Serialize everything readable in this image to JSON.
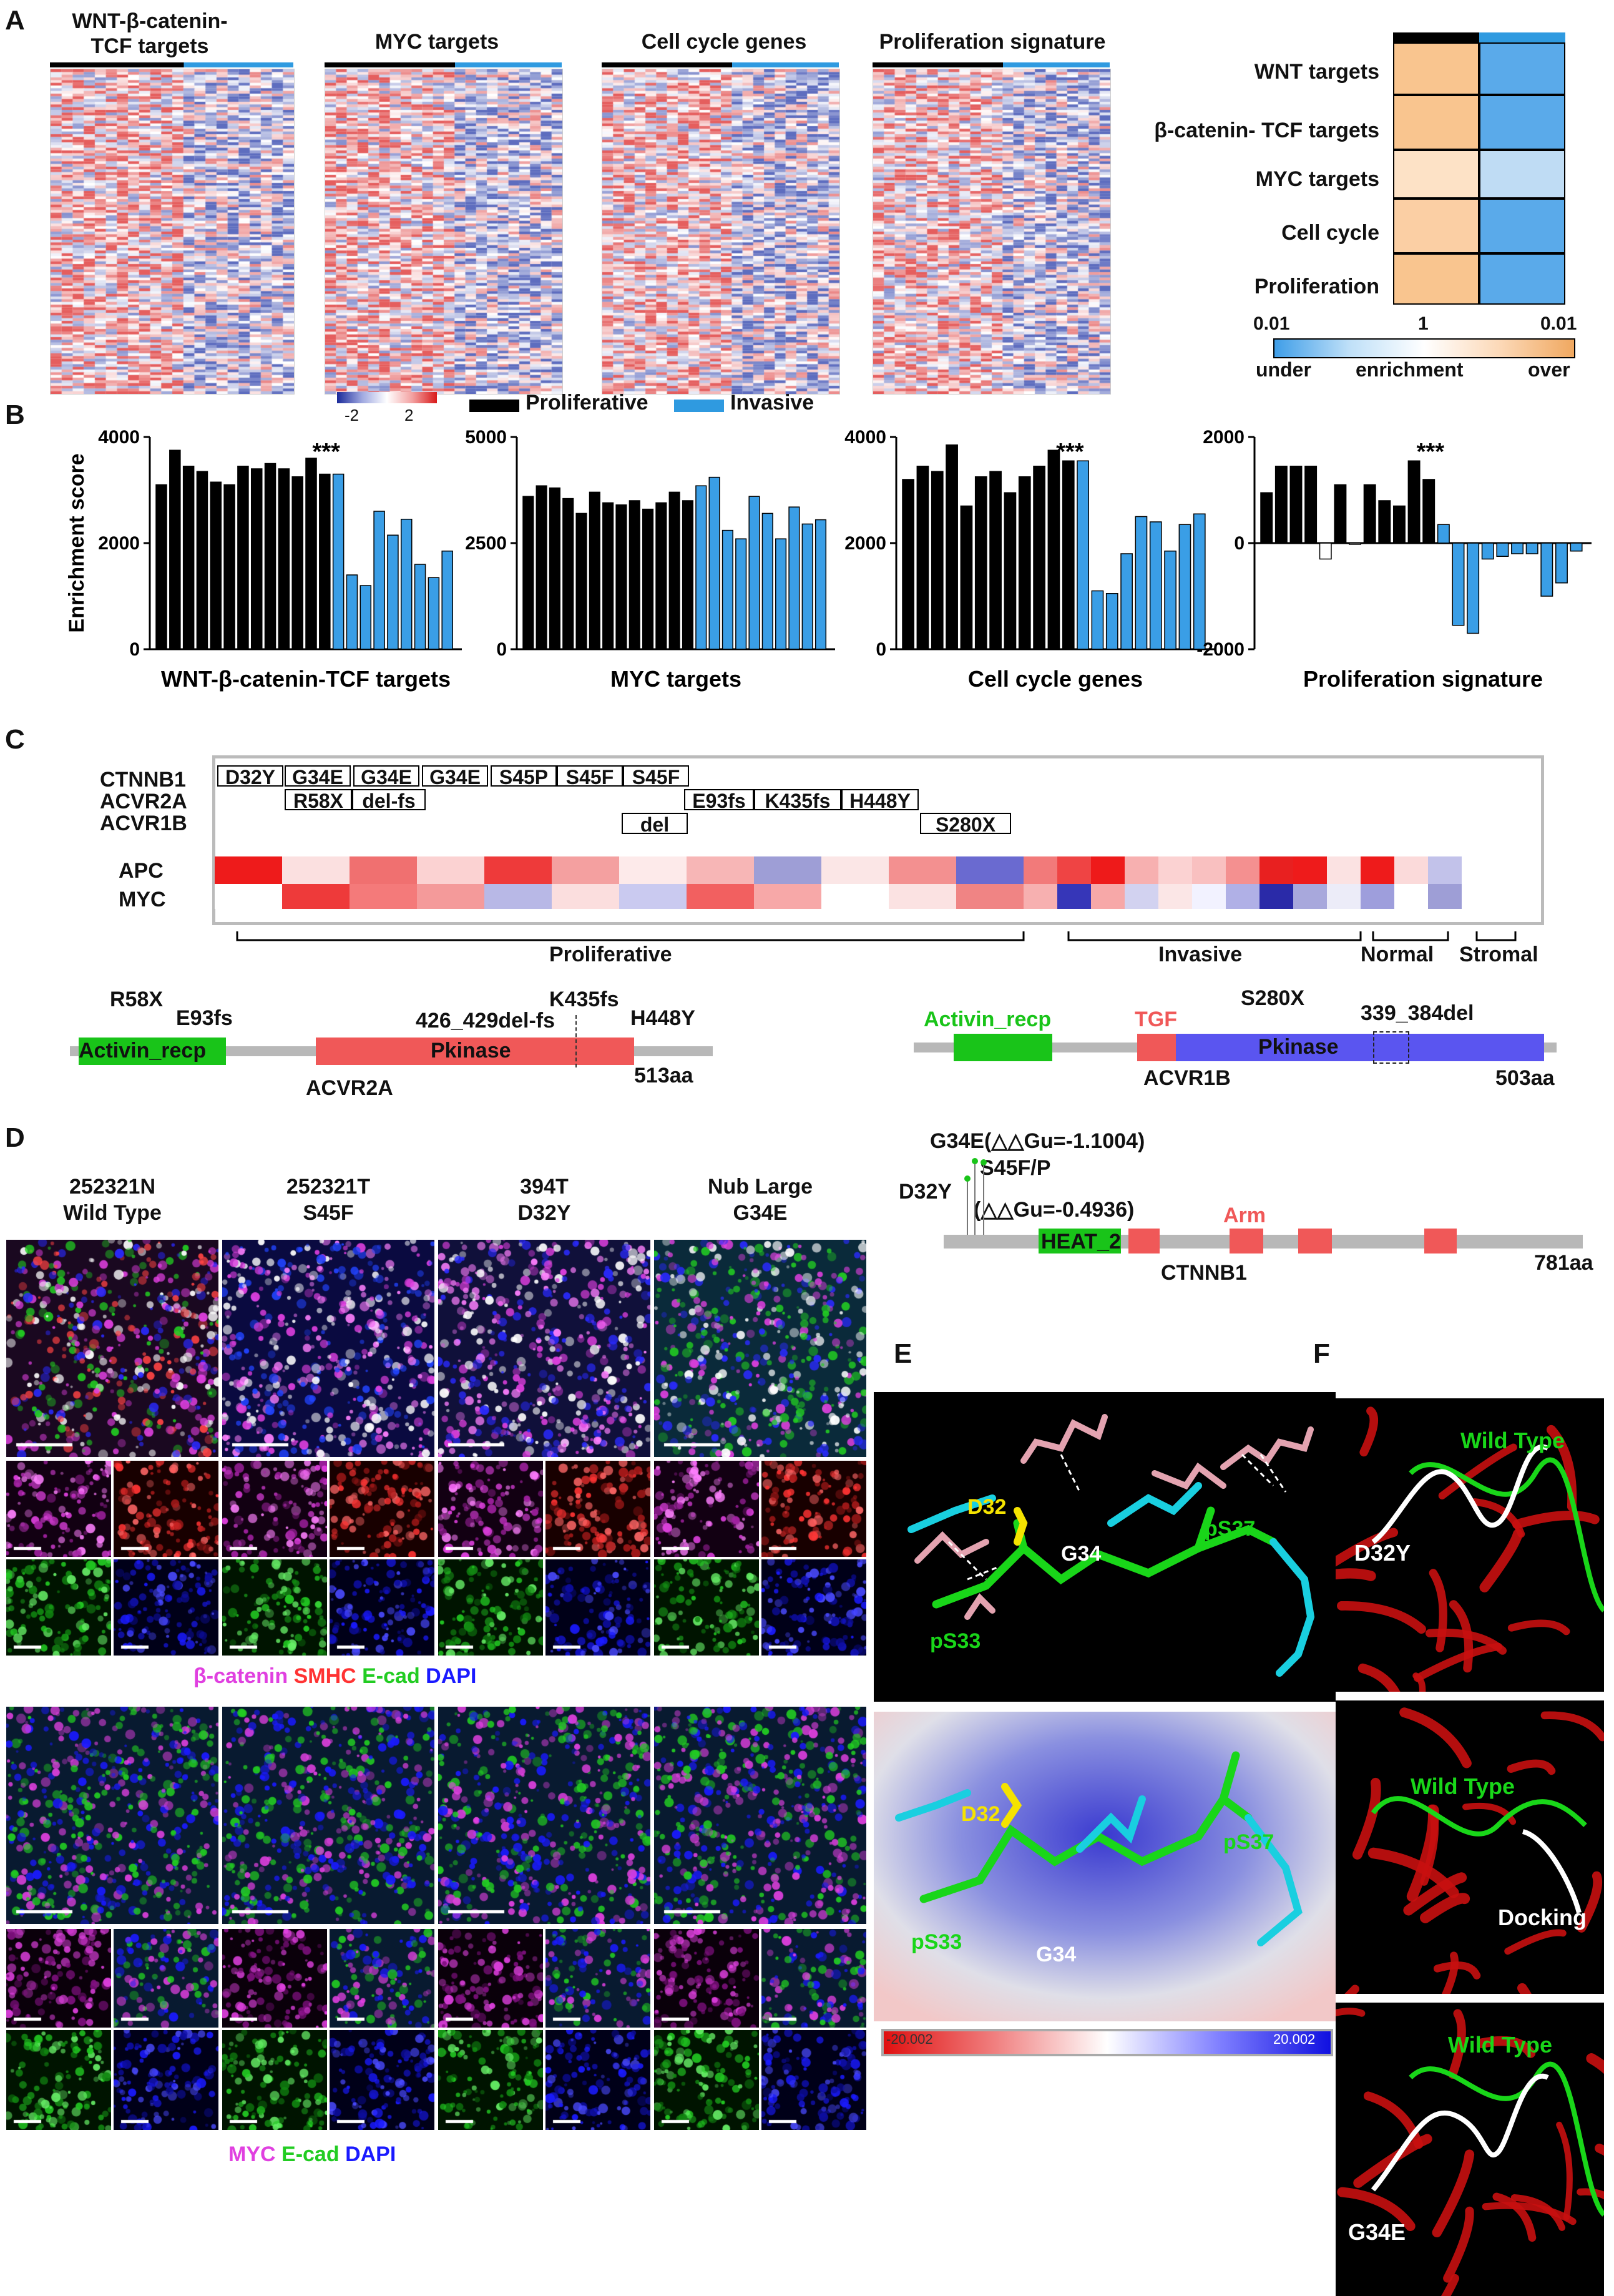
{
  "panel_labels": {
    "A": "A",
    "B": "B",
    "C": "C",
    "D": "D",
    "E": "E",
    "F": "F"
  },
  "panelA": {
    "heatmaps": [
      {
        "title_line1": "WNT-β-catenin-",
        "title_line2": "TCF targets"
      },
      {
        "title_line1": "MYC targets",
        "title_line2": ""
      },
      {
        "title_line1": "Cell cycle genes",
        "title_line2": ""
      },
      {
        "title_line1": "Proliferation signature",
        "title_line2": ""
      }
    ],
    "colorbar": {
      "min": "-2",
      "max": "2"
    },
    "legend": {
      "proliferative": "Proliferative",
      "invasive": "Invasive"
    },
    "enrichment": {
      "rows": [
        "WNT targets",
        "β-catenin- TCF targets",
        "MYC targets",
        "Cell cycle",
        "Proliferation"
      ],
      "scale_left": "0.01",
      "scale_mid": "1",
      "scale_right": "0.01",
      "scale_under": "under",
      "scale_mid_label": "enrichment",
      "scale_over": "over"
    }
  },
  "chart_data": [
    {
      "type": "bar",
      "title": "WNT-β-catenin-TCF targets",
      "ylabel": "Enrichment score",
      "ylim": [
        0,
        4000
      ],
      "yticks": [
        0,
        2000,
        4000
      ],
      "significance": "***",
      "series": [
        {
          "name": "Proliferative",
          "values": [
            3100,
            3750,
            3450,
            3350,
            3150,
            3100,
            3450,
            3400,
            3500,
            3400,
            3250,
            3600,
            3300
          ]
        },
        {
          "name": "Invasive",
          "values": [
            3300,
            1400,
            1200,
            2600,
            2150,
            2450,
            1600,
            1350,
            1850
          ]
        }
      ]
    },
    {
      "type": "bar",
      "title": "MYC targets",
      "ylim": [
        0,
        5000
      ],
      "yticks": [
        0,
        2500,
        5000
      ],
      "significance": "",
      "series": [
        {
          "name": "Proliferative",
          "values": [
            3600,
            3850,
            3800,
            3550,
            3200,
            3700,
            3450,
            3400,
            3500,
            3300,
            3450,
            3700,
            3500
          ]
        },
        {
          "name": "Invasive",
          "values": [
            3850,
            4050,
            2800,
            2600,
            3600,
            3200,
            2600,
            3350,
            2950,
            3050
          ]
        }
      ]
    },
    {
      "type": "bar",
      "title": "Cell cycle genes",
      "ylim": [
        0,
        4000
      ],
      "yticks": [
        0,
        2000,
        4000
      ],
      "significance": "***",
      "series": [
        {
          "name": "Proliferative",
          "values": [
            3200,
            3450,
            3350,
            3850,
            2700,
            3250,
            3350,
            2950,
            3250,
            3450,
            3750,
            3550
          ]
        },
        {
          "name": "Invasive",
          "values": [
            3550,
            1100,
            1050,
            1800,
            2500,
            2400,
            1850,
            2350,
            2550
          ]
        }
      ]
    },
    {
      "type": "bar",
      "title": "Proliferation signature",
      "ylim": [
        -2000,
        2000
      ],
      "yticks": [
        -2000,
        0,
        2000
      ],
      "significance": "***",
      "series": [
        {
          "name": "Proliferative",
          "values": [
            950,
            1450,
            1450,
            1450,
            -300,
            1100,
            0,
            1100,
            800,
            700,
            1550,
            1200
          ]
        },
        {
          "name": "Invasive",
          "values": [
            350,
            -1550,
            -1700,
            -300,
            -250,
            -200,
            -200,
            -1000,
            -750,
            -150
          ]
        }
      ]
    }
  ],
  "panelC": {
    "genes": [
      "CTNNB1",
      "ACVR2A",
      "ACVR1B",
      "APC",
      "MYC"
    ],
    "ctnnb1": [
      "D32Y",
      "G34E",
      "G34E",
      "G34E",
      "S45P",
      "S45F",
      "S45F"
    ],
    "acvr2a": [
      "R58X",
      "del-fs",
      "E93fs",
      "K435fs",
      "H448Y"
    ],
    "acvr1b": [
      "del",
      "S280X"
    ],
    "groups": [
      "Proliferative",
      "Invasive",
      "Normal",
      "Stromal"
    ],
    "acvr2a_map": {
      "domain1": "Activin_recp",
      "domain2": "Pkinase",
      "protein": "ACVR2A",
      "length": "513aa",
      "muts": [
        "R58X",
        "E93fs",
        "426_429del-fs",
        "K435fs",
        "H448Y"
      ]
    },
    "acvr1b_map": {
      "domain1": "Activin_recp",
      "domain2": "TGF",
      "domain3": "Pkinase",
      "protein": "ACVR1B",
      "length": "503aa",
      "muts": [
        "S280X",
        "339_384del"
      ]
    }
  },
  "panelD": {
    "samples": [
      {
        "line1": "252321N",
        "line2": "Wild Type"
      },
      {
        "line1": "252321T",
        "line2": "S45F"
      },
      {
        "line1": "394T",
        "line2": "D32Y"
      },
      {
        "line1": "Nub Large",
        "line2": "G34E"
      }
    ],
    "legend1": {
      "a": "β-catenin",
      "b": "SMHC",
      "c": "E-cad",
      "d": "DAPI"
    },
    "legend2": {
      "a": "MYC",
      "b": "E-cad",
      "c": "DAPI"
    },
    "ctnnb1_map": {
      "m1": "G34E(△△Gu=-1.1004)",
      "m2": "S45F/P",
      "m3": "D32Y",
      "m4": "(△△Gu=-0.4936)",
      "domain1": "HEAT_2",
      "domain2": "Arm",
      "protein": "CTNNB1",
      "length": "781aa"
    },
    "colors": {
      "magenta": "#e040e0",
      "red": "#ff3333",
      "green": "#22cc22",
      "blue": "#1a1aff"
    }
  },
  "panelE": {
    "top_labels": [
      "D32",
      "G34",
      "pS37",
      "pS33"
    ],
    "bottom_labels": [
      "D32",
      "pS37",
      "pS33",
      "G34"
    ],
    "scale_min": "-20.002",
    "scale_max": "20.002"
  },
  "panelF": {
    "panes": [
      {
        "wt": "Wild Type",
        "mut": "D32Y"
      },
      {
        "wt": "Wild Type",
        "mut": "Docking"
      },
      {
        "wt": "Wild Type",
        "mut": "G34E"
      }
    ]
  }
}
